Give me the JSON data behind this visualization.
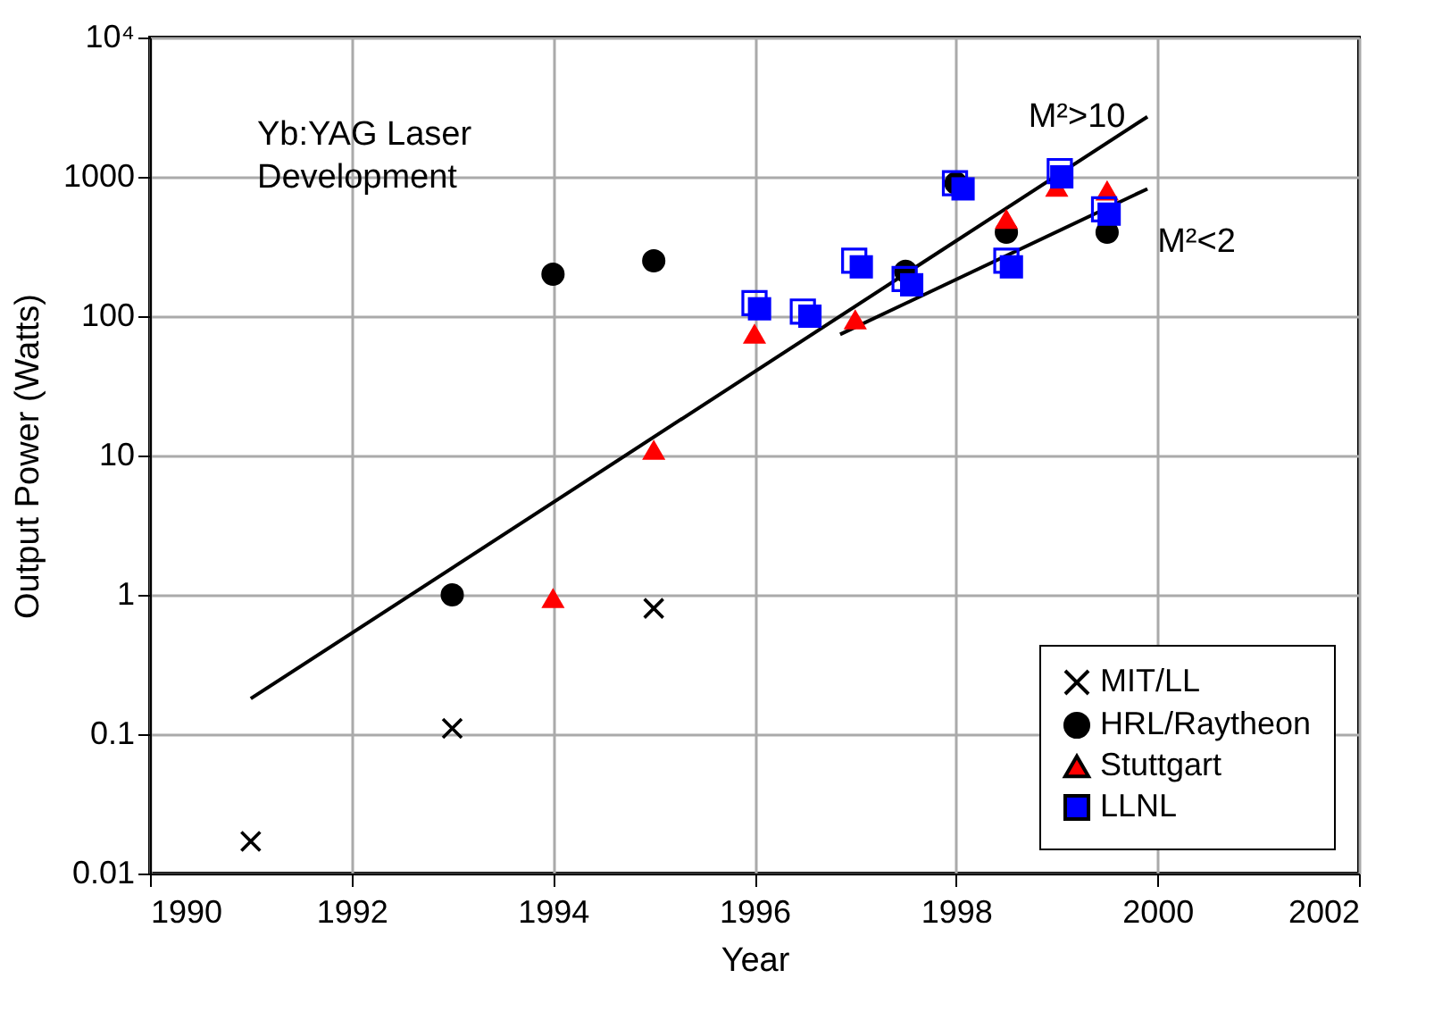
{
  "chart_data": {
    "type": "scatter",
    "xlabel": "Year",
    "ylabel": "Output Power (Watts)",
    "xlim": [
      1990,
      2002
    ],
    "xticks": [
      1990,
      1992,
      1994,
      1996,
      1998,
      2000,
      2002
    ],
    "ylim": [
      0.01,
      10000
    ],
    "yticks": [
      0.01,
      0.1,
      1,
      10,
      100,
      1000,
      {
        "value": 10000,
        "label": "10⁴"
      }
    ],
    "log": "y",
    "grid": true,
    "legend": "bottom right",
    "annotations": [
      "Yb:YAG Laser Development",
      "M²>10",
      "M²<2"
    ],
    "series": [
      {
        "name": "MIT/LL",
        "marker": "cross",
        "color": "#000000",
        "x": [
          1991,
          1993,
          1995
        ],
        "values": [
          0.017,
          0.11,
          0.8
        ]
      },
      {
        "name": "HRL/Raytheon",
        "marker": "circle",
        "color": "#000000",
        "x": [
          1993,
          1994,
          1995,
          1997.5,
          1998,
          1998.5,
          1999.5
        ],
        "values": [
          1,
          200,
          250,
          210,
          900,
          400,
          400
        ]
      },
      {
        "name": "Stuttgart",
        "marker": "triangle",
        "color": "#ff0000",
        "x": [
          1994,
          1995,
          1996,
          1997,
          1998.5,
          1999,
          1999.5
        ],
        "values": [
          0.95,
          11,
          75,
          95,
          500,
          850,
          800
        ]
      },
      {
        "marker": "square",
        "color": "#0000ff",
        "x": [
          1996,
          1996.48,
          1996.99,
          1997.49,
          1997.99,
          1998.5,
          1999.03,
          1999.47
        ],
        "values": [
          124,
          108,
          250,
          185,
          900,
          250,
          1100,
          585
        ]
      },
      {
        "name": "LLNL",
        "marker": "square",
        "color": "#0000ff",
        "x": [
          1996.05,
          1996.55,
          1997.06,
          1997.56,
          1998.07,
          1998.55,
          1999.05,
          1999.52
        ],
        "values": [
          113,
          100,
          226,
          168,
          820,
          226,
          1000,
          540
        ]
      },
      {
        "type": "line",
        "marker": "none",
        "color": "#000000",
        "x": [
          1991,
          1999.9
        ],
        "values": [
          0.18,
          2700
        ]
      },
      {
        "type": "line",
        "marker": "none",
        "color": "#000000",
        "x": [
          1996.85,
          1999.9
        ],
        "values": [
          74,
          820
        ]
      }
    ]
  }
}
